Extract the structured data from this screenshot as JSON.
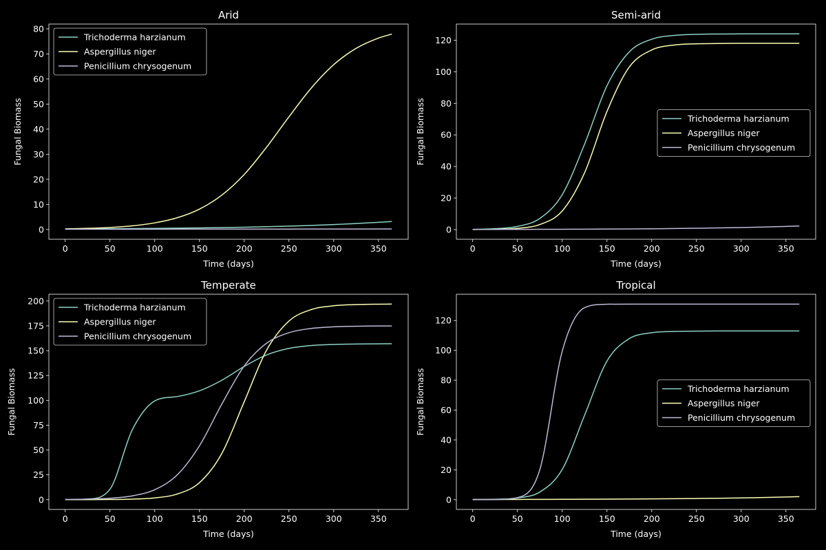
{
  "chart_data": [
    {
      "type": "line",
      "title": "Arid",
      "xlabel": "Time (days)",
      "ylabel": "Fungal Biomass",
      "xlim": [
        -18.25,
        383.25
      ],
      "ylim": [
        -3.9,
        81.9
      ],
      "xticks": [
        0,
        50,
        100,
        150,
        200,
        250,
        300,
        350
      ],
      "yticks": [
        0,
        10,
        20,
        30,
        40,
        50,
        60,
        70,
        80
      ],
      "legend": "upper-left",
      "grid": false,
      "x": [
        0,
        25,
        50,
        75,
        100,
        125,
        150,
        175,
        200,
        225,
        250,
        275,
        300,
        325,
        350,
        365
      ],
      "series": [
        {
          "name": "Trichoderma harzianum",
          "color": "#8dd3c7",
          "values": [
            0.2,
            0.24,
            0.29,
            0.35,
            0.43,
            0.52,
            0.63,
            0.76,
            0.91,
            1.11,
            1.34,
            1.62,
            1.96,
            2.37,
            2.86,
            3.2
          ]
        },
        {
          "name": "Aspergillus niger",
          "color": "#feffb3",
          "values": [
            0.25,
            0.45,
            0.81,
            1.46,
            2.63,
            4.66,
            8.12,
            13.7,
            21.9,
            32.8,
            44.9,
            56.4,
            65.7,
            72.2,
            76.3,
            77.9
          ]
        },
        {
          "name": "Penicillium chrysogenum",
          "color": "#bfbbd9",
          "values": [
            0.1,
            0.105,
            0.11,
            0.115,
            0.121,
            0.127,
            0.133,
            0.139,
            0.146,
            0.153,
            0.161,
            0.169,
            0.177,
            0.186,
            0.195,
            0.2
          ]
        }
      ]
    },
    {
      "type": "line",
      "title": "Semi-arid",
      "xlabel": "Time (days)",
      "ylabel": "Fungal Biomass",
      "xlim": [
        -18.25,
        383.25
      ],
      "ylim": [
        -6.1,
        130.2
      ],
      "xticks": [
        0,
        50,
        100,
        150,
        200,
        250,
        300,
        350
      ],
      "yticks": [
        0,
        20,
        40,
        60,
        80,
        100,
        120
      ],
      "legend": "center-right",
      "grid": false,
      "x": [
        0,
        25,
        50,
        75,
        100,
        125,
        150,
        175,
        200,
        225,
        250,
        275,
        300,
        325,
        350,
        365
      ],
      "series": [
        {
          "name": "Trichoderma harzianum",
          "color": "#8dd3c7",
          "values": [
            0.16,
            0.58,
            2.06,
            7.08,
            22.1,
            54.1,
            91.1,
            112.6,
            120.6,
            123.0,
            123.7,
            123.9,
            124,
            124,
            124,
            124
          ]
        },
        {
          "name": "Aspergillus niger",
          "color": "#feffb3",
          "values": [
            0.05,
            0.21,
            0.83,
            3.22,
            11.8,
            36.0,
            74.8,
            103.0,
            113.8,
            116.9,
            117.7,
            117.9,
            118,
            118,
            118,
            118
          ]
        },
        {
          "name": "Penicillium chrysogenum",
          "color": "#bfbbd9",
          "values": [
            0.1,
            0.12,
            0.15,
            0.19,
            0.24,
            0.29,
            0.36,
            0.45,
            0.56,
            0.69,
            0.86,
            1.07,
            1.32,
            1.64,
            2.03,
            2.3
          ]
        }
      ]
    },
    {
      "type": "line",
      "title": "Temperate",
      "xlabel": "Time (days)",
      "ylabel": "Fungal Biomass",
      "xlim": [
        -18.25,
        383.25
      ],
      "ylim": [
        -9.85,
        206.8
      ],
      "xticks": [
        0,
        50,
        100,
        150,
        200,
        250,
        300,
        350
      ],
      "yticks": [
        0,
        25,
        50,
        75,
        100,
        125,
        150,
        175,
        200
      ],
      "legend": "upper-left",
      "grid": false,
      "x": [
        0,
        25,
        50,
        75,
        100,
        125,
        150,
        175,
        200,
        225,
        250,
        275,
        300,
        325,
        350,
        365
      ],
      "series": [
        {
          "name": "Trichoderma harzianum",
          "color": "#8dd3c7",
          "values": [
            0.06,
            0.65,
            10.5,
            70.4,
            99.4,
            103.8,
            109.6,
            120.2,
            134.1,
            145.7,
            152.3,
            155.2,
            156.3,
            156.7,
            156.9,
            157.0
          ]
        },
        {
          "name": "Aspergillus niger",
          "color": "#feffb3",
          "values": [
            0.02,
            0.05,
            0.17,
            0.55,
            1.78,
            5.63,
            17.1,
            46.5,
            98.5,
            150.5,
            179.8,
            191.4,
            195.2,
            196.4,
            196.8,
            196.9
          ]
        },
        {
          "name": "Penicillium chrysogenum",
          "color": "#bfbbd9",
          "values": [
            0.19,
            0.53,
            1.43,
            3.83,
            10.0,
            24.8,
            54.2,
            96.2,
            134.5,
            157.5,
            168.1,
            172.4,
            174.0,
            174.6,
            174.9,
            174.9
          ]
        }
      ]
    },
    {
      "type": "line",
      "title": "Tropical",
      "xlabel": "Time (days)",
      "ylabel": "Fungal Biomass",
      "xlim": [
        -18.25,
        383.25
      ],
      "ylim": [
        -6.55,
        137.6
      ],
      "xticks": [
        0,
        50,
        100,
        150,
        200,
        250,
        300,
        350
      ],
      "yticks": [
        0,
        20,
        40,
        60,
        80,
        100,
        120
      ],
      "legend": "center-right",
      "grid": false,
      "x": [
        0,
        25,
        50,
        75,
        100,
        125,
        150,
        175,
        200,
        225,
        250,
        275,
        300,
        325,
        350,
        365
      ],
      "series": [
        {
          "name": "Trichoderma harzianum",
          "color": "#8dd3c7",
          "values": [
            0.06,
            0.25,
            1.15,
            5.11,
            20.2,
            56.5,
            92.8,
            107.9,
            111.8,
            112.7,
            112.9,
            113,
            113,
            113,
            113,
            113
          ]
        },
        {
          "name": "Aspergillus niger",
          "color": "#feffb3",
          "values": [
            0.1,
            0.12,
            0.15,
            0.18,
            0.23,
            0.28,
            0.34,
            0.42,
            0.52,
            0.63,
            0.78,
            0.95,
            1.17,
            1.43,
            1.77,
            2.0
          ]
        },
        {
          "name": "Penicillium chrysogenum",
          "color": "#bfbbd9",
          "values": [
            0.005,
            0.08,
            1.36,
            20.1,
            99.3,
            128.6,
            130.9,
            131,
            131,
            131,
            131,
            131,
            131,
            131,
            131,
            131
          ]
        }
      ]
    }
  ]
}
